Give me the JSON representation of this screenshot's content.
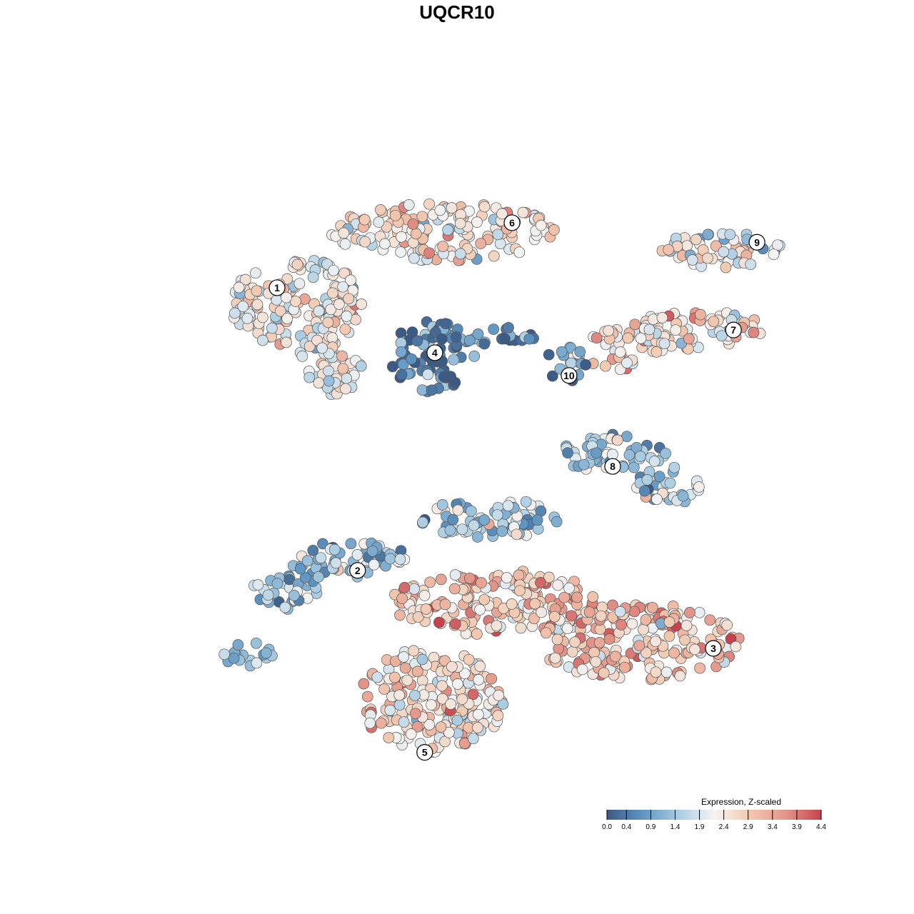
{
  "chart_data": {
    "type": "scatter",
    "title": "UQCR10",
    "xlabel": "",
    "ylabel": "",
    "xlim": [
      0,
      100
    ],
    "ylim": [
      0,
      100
    ],
    "grid": false,
    "legend": {
      "title": "Expression, Z-scaled",
      "position": "bottom-right",
      "ticks": [
        "0.0",
        "0.4",
        "0.9",
        "1.4",
        "1.9",
        "2.4",
        "2.9",
        "3.4",
        "3.9",
        "4.4"
      ],
      "min": 0.0,
      "max": 4.4
    },
    "colorscale": [
      "#3b5a85",
      "#5f95c2",
      "#a9cce2",
      "#f4f4f4",
      "#f3c9b0",
      "#e3958a",
      "#c6434d"
    ],
    "point_color_stroke": "#555555",
    "clusters": [
      {
        "label": "1",
        "x": 20,
        "y": 75.5,
        "mean_expr": 2.4,
        "members": [
          {
            "cx": 23,
            "cy": 73,
            "rx": 10,
            "ry": 7
          },
          {
            "cx": 28,
            "cy": 64,
            "rx": 5,
            "ry": 5
          }
        ]
      },
      {
        "label": "2",
        "x": 32,
        "y": 32,
        "mean_expr": 1.3,
        "members": [
          {
            "cx": 31,
            "cy": 33.5,
            "rx": 9,
            "ry": 3
          },
          {
            "cx": 21,
            "cy": 29,
            "rx": 5,
            "ry": 3
          },
          {
            "cx": 15.5,
            "cy": 19,
            "rx": 4,
            "ry": 2
          }
        ]
      },
      {
        "label": "3",
        "x": 85,
        "y": 20,
        "mean_expr": 3.0,
        "members": [
          {
            "cx": 53,
            "cy": 27,
            "rx": 16,
            "ry": 5
          },
          {
            "cx": 74,
            "cy": 21,
            "rx": 15,
            "ry": 6
          }
        ]
      },
      {
        "label": "4",
        "x": 43.5,
        "y": 65.5,
        "mean_expr": 0.5,
        "members": [
          {
            "cx": 43,
            "cy": 65,
            "rx": 6.5,
            "ry": 5.5
          },
          {
            "cx": 53,
            "cy": 68,
            "rx": 6,
            "ry": 1.5
          }
        ]
      },
      {
        "label": "5",
        "x": 42,
        "y": 4,
        "mean_expr": 2.6,
        "members": [
          {
            "cx": 43,
            "cy": 12,
            "rx": 11,
            "ry": 8
          }
        ]
      },
      {
        "label": "6",
        "x": 55,
        "y": 85.5,
        "mean_expr": 2.5,
        "members": [
          {
            "cx": 45,
            "cy": 84,
            "rx": 17,
            "ry": 4.5
          }
        ]
      },
      {
        "label": "7",
        "x": 88,
        "y": 69,
        "mean_expr": 2.6,
        "members": [
          {
            "cx": 83,
            "cy": 69,
            "rx": 10,
            "ry": 3
          },
          {
            "cx": 73,
            "cy": 67.5,
            "rx": 6,
            "ry": 2.5
          },
          {
            "cx": 70,
            "cy": 64,
            "rx": 3,
            "ry": 2
          }
        ]
      },
      {
        "label": "8",
        "x": 70,
        "y": 48,
        "mean_expr": 1.4,
        "members": [
          {
            "cx": 70,
            "cy": 50,
            "rx": 8,
            "ry": 3
          },
          {
            "cx": 78,
            "cy": 45,
            "rx": 5,
            "ry": 3
          },
          {
            "cx": 52,
            "cy": 40,
            "rx": 11,
            "ry": 3
          }
        ]
      },
      {
        "label": "9",
        "x": 91.5,
        "y": 82.5,
        "mean_expr": 2.3,
        "members": [
          {
            "cx": 86,
            "cy": 81.5,
            "rx": 9,
            "ry": 3
          }
        ]
      },
      {
        "label": "10",
        "x": 63.5,
        "y": 62,
        "mean_expr": 1.1,
        "members": [
          {
            "cx": 63,
            "cy": 64,
            "rx": 3,
            "ry": 3
          }
        ]
      }
    ]
  }
}
